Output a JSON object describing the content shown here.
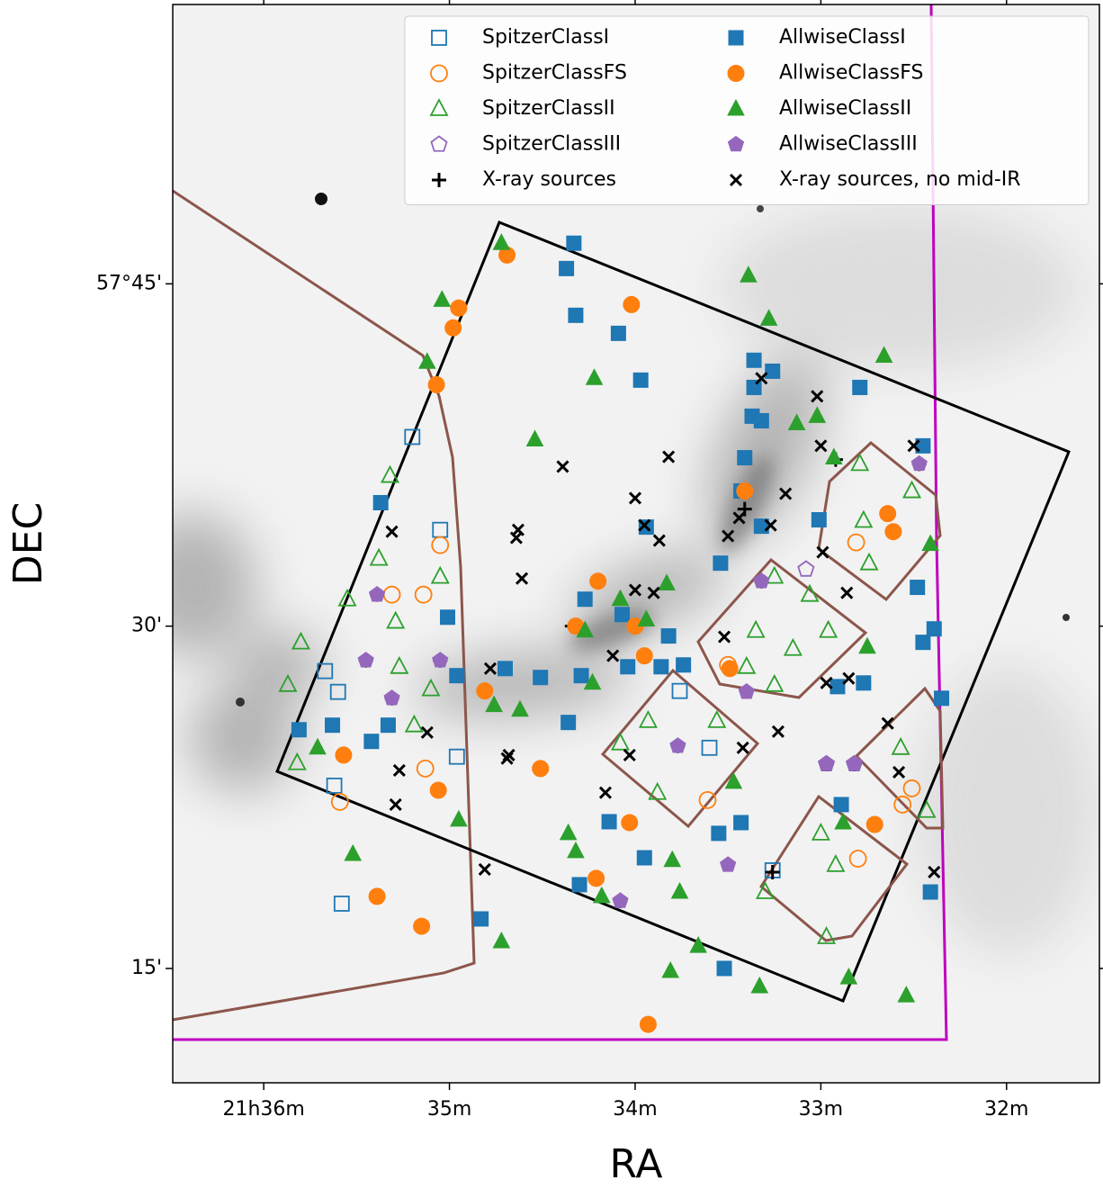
{
  "chart_data": {
    "type": "scatter",
    "x_label": "RA",
    "y_label": "DEC",
    "xlim": [
      36.49,
      31.5
    ],
    "ylim": [
      9.99,
      57.24
    ],
    "xticks": [
      {
        "value": 36,
        "label": "21h36m"
      },
      {
        "value": 35,
        "label": "35m"
      },
      {
        "value": 34,
        "label": "34m"
      },
      {
        "value": 33,
        "label": "33m"
      },
      {
        "value": 32,
        "label": "32m"
      }
    ],
    "yticks": [
      {
        "value": 45,
        "label": "57°45'"
      },
      {
        "value": 30,
        "label": "30'"
      },
      {
        "value": 15,
        "label": "15'"
      }
    ],
    "legend": "upper right",
    "legend_columns": 2,
    "series": [
      {
        "name": "SpitzerClassI",
        "color": "#1f77b4",
        "marker": "square",
        "filled": false,
        "x": [
          35.2,
          35.05,
          35.67,
          35.6,
          34.96,
          33.6,
          35.62,
          35.58,
          33.76,
          33.26
        ],
        "values": [
          38.29,
          34.22,
          28.03,
          27.12,
          24.28,
          24.67,
          23.01,
          17.84,
          27.16,
          19.3
        ]
      },
      {
        "name": "SpitzerClassFS",
        "color": "#ff7f0e",
        "marker": "circle",
        "filled": false,
        "x": [
          35.05,
          35.14,
          35.31,
          35.59,
          33.61,
          32.8,
          32.81,
          35.13,
          32.56,
          32.51,
          33.5
        ],
        "values": [
          33.55,
          31.38,
          31.38,
          22.3,
          22.38,
          19.81,
          33.67,
          23.76,
          22.18,
          22.89,
          28.3
        ]
      },
      {
        "name": "SpitzerClassII",
        "color": "#2ca02c",
        "marker": "triangle",
        "filled": false,
        "x": [
          35.32,
          35.38,
          35.55,
          35.27,
          35.87,
          35.82,
          35.1,
          35.05,
          35.29,
          33.93,
          33.56,
          34.08,
          33.88,
          32.79,
          32.77,
          32.51,
          32.74,
          33.25,
          33.06,
          33.35,
          33.15,
          32.96,
          33.4,
          33.25,
          33.0,
          32.92,
          33.3,
          32.97,
          32.57,
          32.43,
          35.8,
          35.19
        ],
        "values": [
          36.59,
          32.96,
          31.18,
          28.22,
          27.43,
          24.0,
          27.24,
          32.17,
          30.2,
          25.85,
          25.85,
          24.87,
          22.7,
          37.11,
          34.62,
          35.92,
          32.76,
          32.17,
          31.38,
          29.8,
          29.01,
          29.8,
          28.22,
          27.43,
          20.92,
          19.54,
          18.35,
          16.38,
          24.67,
          21.91,
          29.29,
          25.66
        ]
      },
      {
        "name": "SpitzerClassIII",
        "color": "#9467bd",
        "marker": "pentagon",
        "filled": false,
        "x": [
          33.08,
          32.97,
          32.82
        ],
        "values": [
          32.49,
          23.96,
          23.96
        ]
      },
      {
        "name": "X-ray sources",
        "color": "#000000",
        "marker": "plus",
        "filled": true,
        "x": [
          35.39,
          35.45,
          35.31,
          35.05,
          33.77,
          34.08,
          33.26,
          32.97,
          32.82,
          32.47,
          34.34,
          32.92,
          33.32,
          33.41
        ],
        "values": [
          31.38,
          28.5,
          26.84,
          28.5,
          24.75,
          17.96,
          19.22,
          23.96,
          23.96,
          37.11,
          30.0,
          37.3,
          31.97,
          35.13
        ]
      },
      {
        "name": "AllwiseClassI",
        "color": "#1f77b4",
        "marker": "square",
        "filled": true,
        "x": [
          34.33,
          34.37,
          34.32,
          34.09,
          33.97,
          33.36,
          33.26,
          32.79,
          33.36,
          33.37,
          33.32,
          33.41,
          33.43,
          33.32,
          33.01,
          33.54,
          33.94,
          34.27,
          34.07,
          33.82,
          33.86,
          33.74,
          34.04,
          34.29,
          34.51,
          34.7,
          34.96,
          35.01,
          35.37,
          35.42,
          35.33,
          35.63,
          35.81,
          34.36,
          34.14,
          33.95,
          34.3,
          34.83,
          33.52,
          33.43,
          33.55,
          32.89,
          32.41,
          32.48,
          32.45,
          32.39,
          32.77,
          32.45,
          32.35,
          32.91
        ],
        "values": [
          46.78,
          45.67,
          43.62,
          42.83,
          40.78,
          41.65,
          41.17,
          40.46,
          40.46,
          39.2,
          39.0,
          37.38,
          35.92,
          34.38,
          34.66,
          32.76,
          34.34,
          31.18,
          30.51,
          29.57,
          28.22,
          28.3,
          28.22,
          27.83,
          27.75,
          28.14,
          27.83,
          30.39,
          35.41,
          24.95,
          25.66,
          25.66,
          25.46,
          25.78,
          21.43,
          19.85,
          18.67,
          17.17,
          15.0,
          21.39,
          20.92,
          22.18,
          18.35,
          31.7,
          29.29,
          29.88,
          27.51,
          37.9,
          26.84,
          27.35
        ]
      },
      {
        "name": "AllwiseClassFS",
        "color": "#ff7f0e",
        "marker": "circle",
        "filled": true,
        "x": [
          34.69,
          34.95,
          34.98,
          35.07,
          34.02,
          34.2,
          34.0,
          33.95,
          34.81,
          34.51,
          35.06,
          35.57,
          35.39,
          35.15,
          34.21,
          34.03,
          33.93,
          32.64,
          32.61,
          32.71,
          33.49,
          33.41,
          34.32
        ],
        "values": [
          46.26,
          43.94,
          43.07,
          40.58,
          44.09,
          31.97,
          30.0,
          28.7,
          27.16,
          23.76,
          22.81,
          24.35,
          18.16,
          16.85,
          18.95,
          21.39,
          12.55,
          34.93,
          34.14,
          21.31,
          28.14,
          35.92,
          30.0
        ]
      },
      {
        "name": "AllwiseClassII",
        "color": "#2ca02c",
        "marker": "triangle",
        "filled": true,
        "x": [
          34.72,
          35.04,
          35.12,
          33.39,
          33.28,
          34.22,
          34.54,
          32.66,
          33.13,
          33.02,
          32.93,
          32.41,
          33.83,
          34.08,
          34.27,
          34.23,
          34.76,
          34.62,
          35.71,
          35.52,
          34.95,
          34.36,
          34.32,
          34.18,
          33.8,
          33.76,
          34.72,
          33.66,
          33.81,
          33.33,
          32.54,
          32.85,
          32.88,
          33.47,
          33.94,
          32.75
        ],
        "values": [
          46.78,
          44.29,
          41.57,
          45.36,
          43.46,
          40.86,
          38.17,
          41.84,
          38.88,
          39.2,
          37.38,
          33.59,
          31.86,
          31.18,
          29.8,
          27.51,
          26.53,
          26.33,
          24.67,
          20.01,
          21.51,
          20.92,
          20.13,
          18.16,
          19.74,
          18.35,
          16.18,
          15.98,
          14.88,
          14.21,
          13.81,
          14.6,
          21.39,
          23.17,
          30.28,
          29.09
        ]
      },
      {
        "name": "AllwiseClassIII",
        "color": "#9467bd",
        "marker": "pentagon",
        "filled": true,
        "x": [
          35.39,
          35.45,
          35.31,
          35.05,
          33.77,
          34.08,
          33.5,
          33.4,
          32.97,
          32.82,
          32.47,
          33.32
        ],
        "values": [
          31.38,
          28.5,
          26.84,
          28.5,
          24.75,
          17.96,
          19.54,
          27.12,
          23.96,
          23.96,
          37.11,
          31.97
        ]
      },
      {
        "name": "X-ray sources, no mid-IR",
        "color": "#000000",
        "marker": "x",
        "filled": true,
        "x": [
          34.39,
          34.64,
          34.63,
          34.61,
          35.31,
          34.78,
          35.29,
          35.27,
          35.12,
          34.69,
          34.68,
          34.16,
          34.03,
          34.12,
          33.82,
          34.0,
          33.95,
          33.87,
          34.0,
          33.9,
          33.5,
          33.44,
          33.27,
          33.19,
          33.32,
          33.02,
          33.0,
          32.99,
          32.86,
          32.97,
          32.85,
          33.23,
          33.42,
          32.58,
          32.39,
          32.64,
          32.5,
          34.81,
          33.52
        ],
        "values": [
          36.99,
          33.87,
          34.22,
          32.09,
          34.14,
          28.14,
          22.18,
          23.68,
          25.34,
          24.2,
          24.35,
          22.7,
          24.35,
          28.7,
          37.42,
          35.61,
          34.42,
          33.75,
          31.58,
          31.46,
          33.95,
          34.74,
          34.42,
          35.8,
          40.86,
          40.07,
          37.9,
          33.24,
          31.46,
          27.51,
          27.71,
          25.38,
          24.67,
          23.6,
          19.22,
          25.74,
          37.9,
          19.34,
          29.53
        ]
      }
    ]
  }
}
